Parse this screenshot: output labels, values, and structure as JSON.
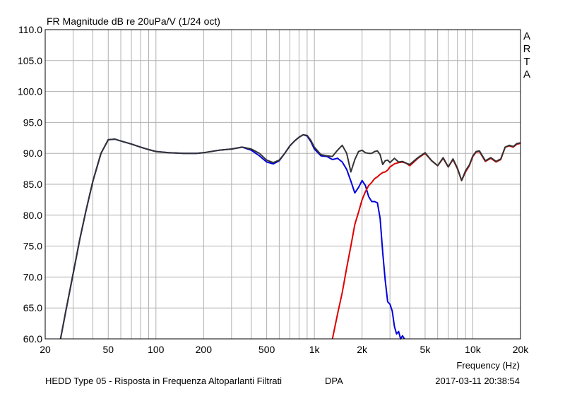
{
  "chart_data": {
    "type": "line",
    "title": "FR Magnitude dB re 20uPa/V (1/24 oct)",
    "watermark": "ARTA",
    "xlabel": "Frequency (Hz)",
    "xscale": "log",
    "xlim": [
      20,
      20000
    ],
    "ylim": [
      60,
      110
    ],
    "yticks": [
      60,
      65,
      70,
      75,
      80,
      85,
      90,
      95,
      100,
      105,
      110
    ],
    "ytick_labels": [
      "60.0",
      "65.0",
      "70.0",
      "75.0",
      "80.0",
      "85.0",
      "90.0",
      "95.0",
      "100.0",
      "105.0",
      "110.0"
    ],
    "xticks": [
      20,
      50,
      100,
      200,
      500,
      1000,
      2000,
      5000,
      10000,
      20000
    ],
    "xtick_labels": [
      "20",
      "50",
      "100",
      "200",
      "500",
      "1k",
      "2k",
      "5k",
      "10k",
      "20k"
    ],
    "grid": true,
    "footer_left": "HEDD Type 05 - Risposta in Frequenza Altoparlanti Filtrati",
    "footer_mid": "DPA",
    "footer_right": "2017-03-11  20:38:54",
    "series": [
      {
        "color": "#0000dd",
        "x": [
          25,
          27,
          30,
          33,
          36,
          40,
          45,
          50,
          55,
          60,
          70,
          80,
          90,
          100,
          120,
          150,
          180,
          200,
          250,
          300,
          350,
          400,
          450,
          500,
          550,
          600,
          650,
          700,
          750,
          800,
          850,
          900,
          950,
          1000,
          1100,
          1200,
          1300,
          1400,
          1500,
          1600,
          1700,
          1800,
          1900,
          2000,
          2100,
          2200,
          2300,
          2400,
          2500,
          2600,
          2700,
          2800,
          2900,
          3000,
          3100,
          3200,
          3300,
          3400,
          3500,
          3600,
          3700
        ],
        "y": [
          60.0,
          64.5,
          70.5,
          76.0,
          80.5,
          85.5,
          90.0,
          92.2,
          92.3,
          92.0,
          91.5,
          91.0,
          90.6,
          90.3,
          90.1,
          90.0,
          90.0,
          90.1,
          90.5,
          90.7,
          91.0,
          90.5,
          89.6,
          88.6,
          88.3,
          88.8,
          90.0,
          91.2,
          92.0,
          92.6,
          93.0,
          92.8,
          91.9,
          90.7,
          89.6,
          89.5,
          89.0,
          89.2,
          88.6,
          87.4,
          85.5,
          83.6,
          84.5,
          85.6,
          84.8,
          83.0,
          82.2,
          82.2,
          82.0,
          79.5,
          74.0,
          69.5,
          66.0,
          65.6,
          64.5,
          62.0,
          60.8,
          61.2,
          60.0,
          60.5,
          60.0
        ]
      },
      {
        "color": "#dd0000",
        "x": [
          1300,
          1400,
          1500,
          1600,
          1700,
          1800,
          1900,
          2000,
          2100,
          2200,
          2300,
          2400,
          2500,
          2600,
          2700,
          2800,
          2900,
          3000,
          3200,
          3400,
          3600,
          3800,
          4000,
          4500,
          5000,
          5500,
          6000,
          6500,
          7000,
          7500,
          8000,
          8500,
          9000,
          9500,
          10000,
          10500,
          11000,
          12000,
          13000,
          14000,
          15000,
          16000,
          17000,
          18000,
          19000,
          20000
        ],
        "y": [
          60.0,
          64.0,
          67.5,
          71.5,
          75.0,
          78.5,
          80.5,
          82.5,
          83.8,
          84.8,
          85.3,
          85.9,
          86.2,
          86.6,
          86.9,
          87.0,
          87.3,
          87.8,
          88.3,
          88.5,
          88.6,
          88.4,
          88.0,
          89.2,
          90.0,
          88.8,
          88.0,
          89.2,
          87.8,
          89.0,
          87.5,
          85.6,
          87.0,
          88.0,
          89.5,
          90.2,
          90.3,
          88.7,
          89.2,
          88.6,
          89.0,
          91.0,
          91.2,
          91.0,
          91.5,
          91.6
        ]
      },
      {
        "color": "#333333",
        "x": [
          25,
          27,
          30,
          33,
          36,
          40,
          45,
          50,
          55,
          60,
          70,
          80,
          90,
          100,
          120,
          150,
          180,
          200,
          250,
          300,
          350,
          400,
          450,
          500,
          550,
          600,
          650,
          700,
          750,
          800,
          850,
          900,
          950,
          1000,
          1100,
          1200,
          1300,
          1400,
          1500,
          1600,
          1700,
          1800,
          1900,
          2000,
          2100,
          2200,
          2300,
          2400,
          2500,
          2600,
          2700,
          2800,
          2900,
          3000,
          3200,
          3400,
          3600,
          3800,
          4000,
          4500,
          5000,
          5500,
          6000,
          6500,
          7000,
          7500,
          8000,
          8500,
          9000,
          9500,
          10000,
          10500,
          11000,
          12000,
          13000,
          14000,
          15000,
          16000,
          17000,
          18000,
          19000,
          20000
        ],
        "y": [
          60.0,
          64.5,
          70.5,
          76.0,
          80.5,
          85.5,
          90.0,
          92.2,
          92.3,
          92.0,
          91.5,
          91.0,
          90.6,
          90.3,
          90.1,
          90.0,
          90.0,
          90.1,
          90.5,
          90.7,
          91.0,
          90.7,
          90.0,
          88.9,
          88.5,
          88.9,
          90.0,
          91.2,
          92.0,
          92.6,
          93.0,
          92.9,
          92.1,
          91.0,
          89.8,
          89.6,
          89.5,
          90.5,
          91.3,
          90.0,
          87.0,
          89.0,
          90.3,
          90.5,
          90.1,
          90.0,
          90.0,
          90.3,
          90.4,
          89.8,
          88.2,
          88.8,
          88.9,
          88.5,
          89.2,
          88.6,
          88.7,
          88.4,
          88.2,
          89.3,
          90.1,
          88.8,
          88.0,
          89.3,
          87.8,
          89.1,
          87.6,
          85.6,
          87.2,
          88.1,
          89.6,
          90.3,
          90.4,
          88.8,
          89.3,
          88.7,
          89.1,
          91.0,
          91.3,
          91.1,
          91.6,
          91.7
        ]
      }
    ]
  }
}
